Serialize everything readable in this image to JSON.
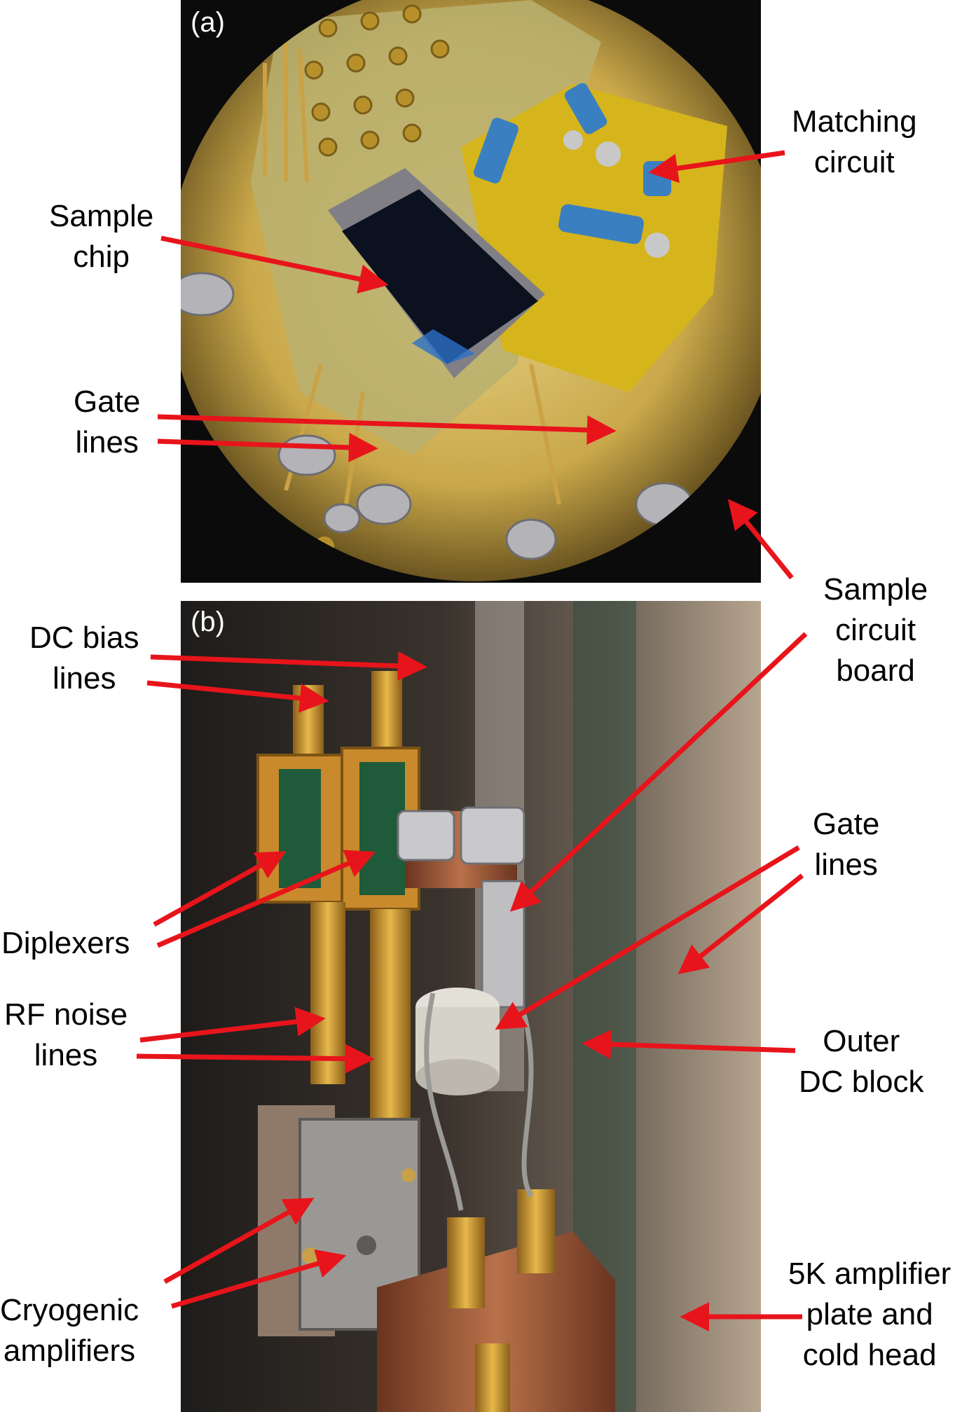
{
  "panels": {
    "a": {
      "tag": "(a)"
    },
    "b": {
      "tag": "(b)"
    }
  },
  "labels": {
    "matching_circuit": [
      "Matching",
      "circuit"
    ],
    "sample_chip": [
      "Sample",
      "chip"
    ],
    "gate_lines_a": [
      "Gate",
      "lines"
    ],
    "sample_circuit_board": [
      "Sample",
      "circuit",
      "board"
    ],
    "dc_bias_lines": [
      "DC bias",
      "lines"
    ],
    "gate_lines_b": [
      "Gate",
      "lines"
    ],
    "diplexers": [
      "Diplexers"
    ],
    "rf_noise_lines": [
      "RF noise",
      "lines"
    ],
    "outer_dc_block": [
      "Outer",
      "DC block"
    ],
    "cryogenic_amplifiers": [
      "Cryogenic",
      "amplifiers"
    ],
    "amp_plate": [
      "5K amplifier",
      "plate and",
      "cold head"
    ]
  },
  "colors": {
    "arrow": "#e8141b",
    "pcb_gold": "#c9a437",
    "kapton": "#d9b81a",
    "chip": "#0c1120",
    "copper": "#a8603a",
    "brass": "#d29a2e"
  }
}
